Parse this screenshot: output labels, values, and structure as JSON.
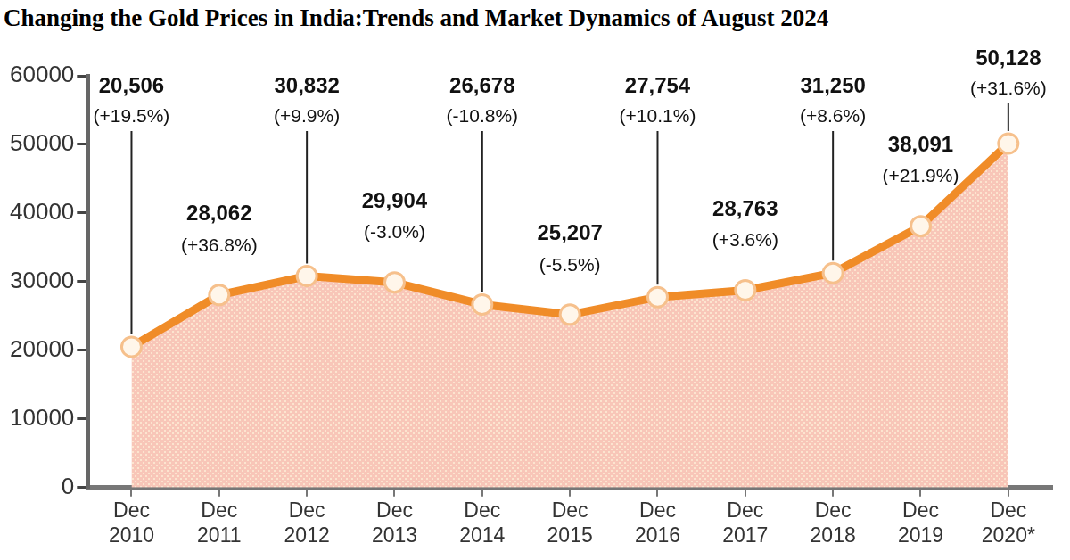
{
  "chart_data": {
    "type": "line",
    "title": "Changing the Gold Prices in India:Trends and Market Dynamics of August 2024",
    "categories": [
      "Dec 2010",
      "Dec 2011",
      "Dec 2012",
      "Dec 2013",
      "Dec 2014",
      "Dec 2015",
      "Dec 2016",
      "Dec 2017",
      "Dec 2018",
      "Dec 2019",
      "Dec 2020*"
    ],
    "values": [
      20506,
      28062,
      30832,
      29904,
      26678,
      25207,
      27754,
      28763,
      31250,
      38091,
      50128
    ],
    "value_labels": [
      "20,506",
      "28,062",
      "30,832",
      "29,904",
      "26,678",
      "25,207",
      "27,754",
      "28,763",
      "31,250",
      "38,091",
      "50,128"
    ],
    "annotations": [
      "(+19.5%)",
      "(+36.8%)",
      "(+9.9%)",
      "(-3.0%)",
      "(-10.8%)",
      "(-5.5%)",
      "(+10.1%)",
      "(+3.6%)",
      "(+8.6%)",
      "(+21.9%)",
      "(+31.6%)"
    ],
    "color": "#f08c28",
    "ylim": [
      0,
      60000
    ],
    "yticks": [
      0,
      10000,
      20000,
      30000,
      40000,
      50000,
      60000
    ],
    "grid": false,
    "data_labels": true,
    "marker": "circle"
  }
}
